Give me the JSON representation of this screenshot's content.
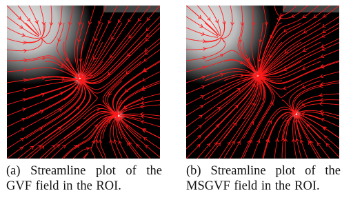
{
  "figure": {
    "panels": [
      {
        "id": "a",
        "caption": "(a) Streamline plot of the GVF field in the ROI."
      },
      {
        "id": "b",
        "caption": "(b) Streamline plot of the MSGVF field in the ROI."
      }
    ]
  },
  "colors": {
    "streamline": "#ff1a1a",
    "background": "#000000",
    "region_light": "#d0d0d0"
  }
}
